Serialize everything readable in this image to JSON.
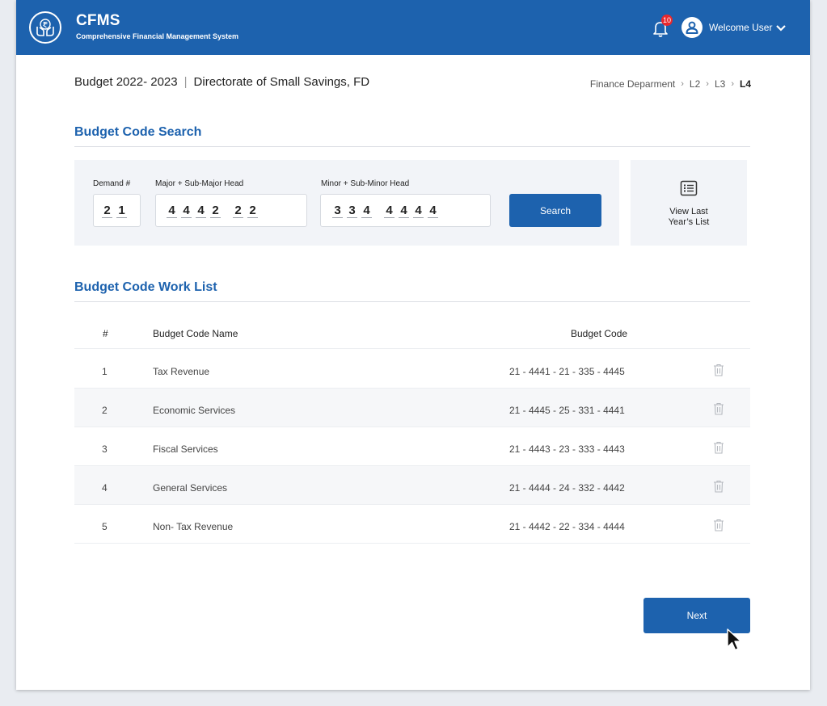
{
  "header": {
    "app_name": "CFMS",
    "app_subtitle": "Comprehensive Financial Management System",
    "notification_count": "10",
    "welcome_text": "Welcome User",
    "bar_color": "#1d62ae"
  },
  "page": {
    "budget_year": "Budget 2022- 2023",
    "directorate": "Directorate of Small Savings, FD",
    "separator": "|"
  },
  "breadcrumb": {
    "items": [
      "Finance Deparment",
      "L2",
      "L3"
    ],
    "current": "L4",
    "separator": "›"
  },
  "search": {
    "section_title": "Budget Code Search",
    "demand_label": "Demand #",
    "demand_digits": [
      "2",
      "1"
    ],
    "major_label": "Major + Sub-Major Head",
    "major_digits": [
      "4",
      "4",
      "4",
      "2",
      "2",
      "2"
    ],
    "minor_label": "Minor + Sub-Minor Head",
    "minor_digits": [
      "3",
      "3",
      "4",
      "4",
      "4",
      "4",
      "4"
    ],
    "search_button": "Search",
    "last_year_line1": "View Last",
    "last_year_line2": "Year’s List"
  },
  "worklist": {
    "section_title": "Budget Code Work List",
    "columns": {
      "index": "#",
      "name": "Budget Code Name",
      "code": "Budget Code"
    },
    "rows": [
      {
        "index": "1",
        "name": "Tax Revenue",
        "code": "21 - 4441 - 21 - 335 - 4445"
      },
      {
        "index": "2",
        "name": "Economic Services",
        "code": "21 - 4445 - 25 - 331 - 4441"
      },
      {
        "index": "3",
        "name": "Fiscal Services",
        "code": "21 - 4443 - 23 - 333 - 4443"
      },
      {
        "index": "4",
        "name": "General Services",
        "code": "21 - 4444 - 24 - 332 - 4442"
      },
      {
        "index": "5",
        "name": "Non- Tax Revenue",
        "code": "21 - 4442 - 22 - 334 - 4444"
      }
    ],
    "row_icon": "trash-icon"
  },
  "footer": {
    "next_button": "Next"
  }
}
